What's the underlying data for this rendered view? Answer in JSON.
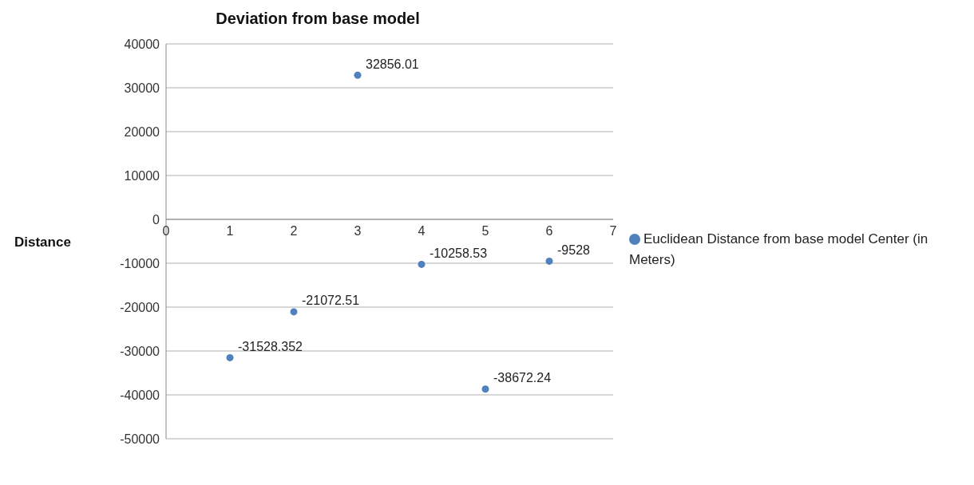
{
  "chart_data": {
    "type": "scatter",
    "title": "Deviation from base model",
    "ylabel": "Distance",
    "x": [
      1,
      2,
      3,
      4,
      5,
      6
    ],
    "series": [
      {
        "name": "Euclidean Distance from base model Center (in Meters)",
        "color": "#4f81bd",
        "values": [
          -31528.352,
          -21072.51,
          32856.01,
          -10258.53,
          -38672.24,
          -9528
        ]
      }
    ],
    "xlim": [
      0,
      7
    ],
    "xticks": [
      0,
      1,
      2,
      3,
      4,
      5,
      6,
      7
    ],
    "ylim": [
      -50000,
      40000
    ],
    "yticks": [
      -50000,
      -40000,
      -30000,
      -20000,
      -10000,
      0,
      10000,
      20000,
      30000,
      40000
    ],
    "grid": "y",
    "legend": "right",
    "marker": "circle",
    "data_labels": true
  }
}
